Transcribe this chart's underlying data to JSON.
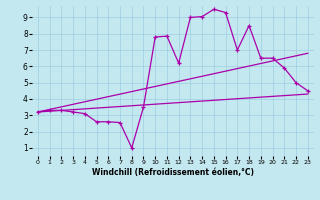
{
  "xlabel": "Windchill (Refroidissement éolien,°C)",
  "bg_color": "#c4e8f0",
  "line_color": "#aa00aa",
  "grid_color": "#9ecde0",
  "xlim": [
    -0.5,
    23.5
  ],
  "ylim": [
    0.5,
    9.7
  ],
  "xticks": [
    0,
    1,
    2,
    3,
    4,
    5,
    6,
    7,
    8,
    9,
    10,
    11,
    12,
    13,
    14,
    15,
    16,
    17,
    18,
    19,
    20,
    21,
    22,
    23
  ],
  "yticks": [
    1,
    2,
    3,
    4,
    5,
    6,
    7,
    8,
    9
  ],
  "series1_x": [
    0,
    1,
    2,
    3,
    4,
    5,
    6,
    7,
    8,
    9,
    10,
    11,
    12,
    13,
    14,
    15,
    16,
    17,
    18,
    19,
    20,
    21,
    22,
    23
  ],
  "series1_y": [
    3.2,
    3.3,
    3.3,
    3.2,
    3.1,
    2.6,
    2.6,
    2.55,
    1.0,
    3.5,
    7.8,
    7.85,
    6.2,
    9.0,
    9.05,
    9.5,
    9.3,
    7.0,
    8.5,
    6.5,
    6.5,
    5.9,
    5.0,
    4.5
  ],
  "series2_x": [
    0,
    23
  ],
  "series2_y": [
    3.2,
    4.3
  ],
  "series3_x": [
    0,
    23
  ],
  "series3_y": [
    3.2,
    6.8
  ],
  "marker": "+",
  "markersize": 3.5,
  "linewidth": 0.9
}
